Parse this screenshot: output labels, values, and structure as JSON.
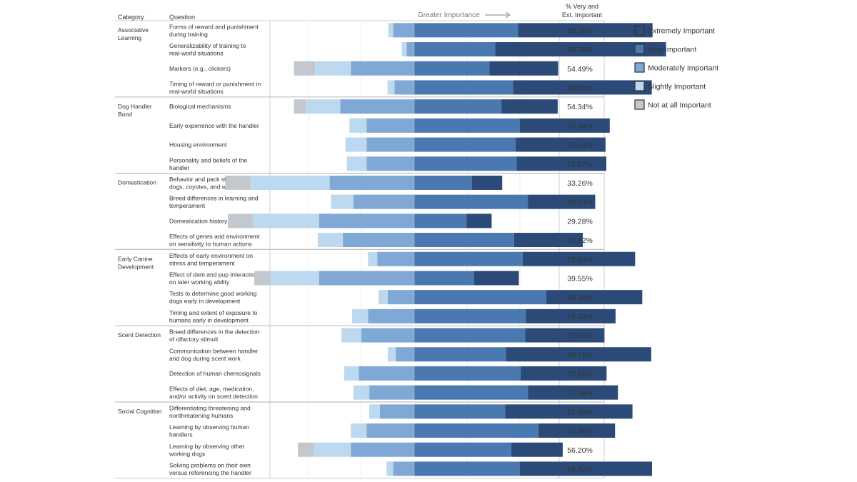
{
  "chart_data": {
    "type": "bar",
    "subtype": "diverging-stacked-bar",
    "header": {
      "category_label": "Category",
      "question_label": "Question",
      "direction_label": "Greater Importance",
      "pct_label_line1": "% Very and",
      "pct_label_line2": "Ext. Important"
    },
    "legend": [
      {
        "key": "extremely",
        "label": "Extremely Important",
        "color": "#2b4a77"
      },
      {
        "key": "very",
        "label": "Very Important",
        "color": "#4a78b0"
      },
      {
        "key": "moderately",
        "label": "Moderately Important",
        "color": "#7fa8d4"
      },
      {
        "key": "slightly",
        "label": "Slightly Important",
        "color": "#bcd9ef"
      },
      {
        "key": "not_at_all",
        "label": "Not at all Important",
        "color": "#c3c8cf"
      }
    ],
    "value_units": "percent of respondents",
    "groups": [
      {
        "name": [
          "Associative",
          "Learning"
        ],
        "rows": [
          {
            "question": [
              "Forms of reward and punishment",
              "during training"
            ],
            "pct": "90.16%",
            "values": {
              "extremely": 50.9,
              "very": 39.3,
              "moderately": 8.0,
              "slightly": 1.8,
              "not_at_all": 0
            }
          },
          {
            "question": [
              "Generalizability of training to",
              "real-world situations"
            ],
            "pct": "95.29%",
            "values": {
              "extremely": 64.7,
              "very": 30.6,
              "moderately": 2.9,
              "slightly": 1.8,
              "not_at_all": 0
            }
          },
          {
            "question": [
              "Markers (e.g., clickers)"
            ],
            "pct": "54.49%",
            "values": {
              "extremely": 26.0,
              "very": 28.5,
              "moderately": 24.0,
              "slightly": 13.5,
              "not_at_all": 8.0
            }
          },
          {
            "question": [
              "Timing of reward or punishment in",
              "real-world situations"
            ],
            "pct": "89.91%",
            "values": {
              "extremely": 52.5,
              "very": 37.4,
              "moderately": 7.5,
              "slightly": 2.6,
              "not_at_all": 0
            }
          }
        ]
      },
      {
        "name": [
          "Dog Handler",
          "Bond"
        ],
        "rows": [
          {
            "question": [
              "Biological mechanisms"
            ],
            "pct": "54.34%",
            "values": {
              "extremely": 21.3,
              "very": 33.0,
              "moderately": 28.0,
              "slightly": 13.0,
              "not_at_all": 4.5
            }
          },
          {
            "question": [
              "Early experience with the handler"
            ],
            "pct": "73.94%",
            "values": {
              "extremely": 34.0,
              "very": 40.0,
              "moderately": 18.0,
              "slightly": 6.5,
              "not_at_all": 0
            }
          },
          {
            "question": [
              "Housing environment"
            ],
            "pct": "72.44%",
            "values": {
              "extremely": 34.0,
              "very": 38.4,
              "moderately": 18.0,
              "slightly": 8.0,
              "not_at_all": 0
            }
          },
          {
            "question": [
              "Personality and beliefs of the",
              "handler"
            ],
            "pct": "72.67%",
            "values": {
              "extremely": 34.0,
              "very": 38.7,
              "moderately": 18.0,
              "slightly": 7.5,
              "not_at_all": 0
            }
          }
        ]
      },
      {
        "name": [
          "Domestication"
        ],
        "rows": [
          {
            "question": [
              "Behavior and pack structure of wild",
              "dogs, coyotes, and wolves"
            ],
            "pct": "33.26%",
            "values": {
              "extremely": 11.5,
              "very": 21.8,
              "moderately": 32.0,
              "slightly": 30.0,
              "not_at_all": 9.5
            }
          },
          {
            "question": [
              "Breed differences in learning and",
              "temperament"
            ],
            "pct": "68.54%",
            "values": {
              "extremely": 25.5,
              "very": 43.0,
              "moderately": 23.0,
              "slightly": 8.5,
              "not_at_all": 0
            }
          },
          {
            "question": [
              "Domestication history of dogs"
            ],
            "pct": "29.28%",
            "values": {
              "extremely": 9.5,
              "very": 19.8,
              "moderately": 36.0,
              "slightly": 25.0,
              "not_at_all": 9.5
            }
          },
          {
            "question": [
              "Effects of genes and environment",
              "on sensitivity to human actions"
            ],
            "pct": "63.82%",
            "values": {
              "extremely": 26.0,
              "very": 37.8,
              "moderately": 27.0,
              "slightly": 9.5,
              "not_at_all": 0
            }
          }
        ]
      },
      {
        "name": [
          "Early Canine",
          "Development"
        ],
        "rows": [
          {
            "question": [
              "Effects of early environment on",
              "stress and temperament"
            ],
            "pct": "83.63%",
            "values": {
              "extremely": 42.6,
              "very": 41.0,
              "moderately": 14.0,
              "slightly": 3.5,
              "not_at_all": 0
            }
          },
          {
            "question": [
              "Effect of dam and pup interaction",
              "on later working ability"
            ],
            "pct": "39.55%",
            "values": {
              "extremely": 17.0,
              "very": 22.6,
              "moderately": 36.0,
              "slightly": 18.5,
              "not_at_all": 6.0
            }
          },
          {
            "question": [
              "Tests to determine good working",
              "dogs early in development"
            ],
            "pct": "86.30%",
            "values": {
              "extremely": 36.3,
              "very": 50.0,
              "moderately": 10.0,
              "slightly": 3.5,
              "not_at_all": 0
            }
          },
          {
            "question": [
              "Timing and extent of exposure to",
              "humans early in development"
            ],
            "pct": "76.23%",
            "values": {
              "extremely": 34.0,
              "very": 42.2,
              "moderately": 17.5,
              "slightly": 6.0,
              "not_at_all": 0
            }
          }
        ]
      },
      {
        "name": [
          "Scent Detection"
        ],
        "rows": [
          {
            "question": [
              "Breed differences in the detection",
              "of olfactory stimuli"
            ],
            "pct": "72.03%",
            "values": {
              "extremely": 30.0,
              "very": 42.0,
              "moderately": 20.0,
              "slightly": 7.5,
              "not_at_all": 0
            }
          },
          {
            "question": [
              "Communication between handler",
              "and dog during scent work"
            ],
            "pct": "89.71%",
            "values": {
              "extremely": 55.0,
              "very": 34.7,
              "moderately": 7.0,
              "slightly": 3.0,
              "not_at_all": 0
            }
          },
          {
            "question": [
              "Detection of human chemosignals"
            ],
            "pct": "72.81%",
            "values": {
              "extremely": 32.5,
              "very": 40.3,
              "moderately": 21.0,
              "slightly": 5.5,
              "not_at_all": 0
            }
          },
          {
            "question": [
              "Effects of diet, age, medication,",
              "and/or activity on scent detection"
            ],
            "pct": "77.08%",
            "values": {
              "extremely": 34.0,
              "very": 43.1,
              "moderately": 17.0,
              "slightly": 6.0,
              "not_at_all": 0
            }
          }
        ]
      },
      {
        "name": [
          "Social Cognition"
        ],
        "rows": [
          {
            "question": [
              "Differentiating threatening and",
              "nonthreatening humans"
            ],
            "pct": "82.65%",
            "values": {
              "extremely": 48.2,
              "very": 34.4,
              "moderately": 13.0,
              "slightly": 4.0,
              "not_at_all": 0
            }
          },
          {
            "question": [
              "Learning by observing human",
              "handlers"
            ],
            "pct": "75.90%",
            "values": {
              "extremely": 29.0,
              "very": 47.0,
              "moderately": 18.0,
              "slightly": 6.0,
              "not_at_all": 0
            }
          },
          {
            "question": [
              "Learning by observing other",
              "working dogs"
            ],
            "pct": "56.20%",
            "values": {
              "extremely": 19.5,
              "very": 36.7,
              "moderately": 24.0,
              "slightly": 14.0,
              "not_at_all": 6.0
            }
          },
          {
            "question": [
              "Solving problems on their own",
              "versus referencing the handler"
            ],
            "pct": "89.42%",
            "values": {
              "extremely": 50.0,
              "very": 40.0,
              "moderately": 8.0,
              "slightly": 2.5,
              "not_at_all": 0
            }
          }
        ]
      }
    ]
  }
}
